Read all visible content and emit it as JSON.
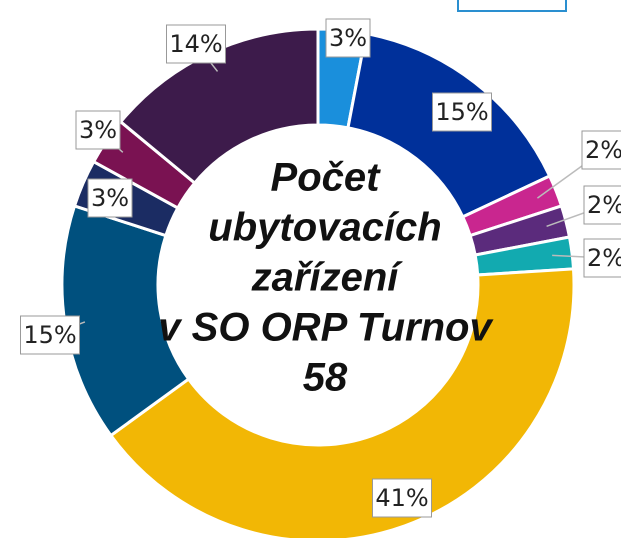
{
  "chart_data": {
    "type": "donut",
    "title": [
      "Počet",
      "ubytovacích",
      "zařízení",
      "v SO ORP Turnov"
    ],
    "total": 58,
    "values": [
      3,
      15,
      2,
      2,
      2,
      41,
      15,
      3,
      3,
      14
    ],
    "value_labels": [
      "3%",
      "15%",
      "2%",
      "2%",
      "2%",
      "41%",
      "15%",
      "3%",
      "3%",
      "14%"
    ],
    "colors": [
      "#1a8fdc",
      "#00309a",
      "#c9268f",
      "#5b2b7c",
      "#12aab0",
      "#f2b705",
      "#00507e",
      "#1b2c63",
      "#7a1252",
      "#3d1b4b"
    ]
  }
}
